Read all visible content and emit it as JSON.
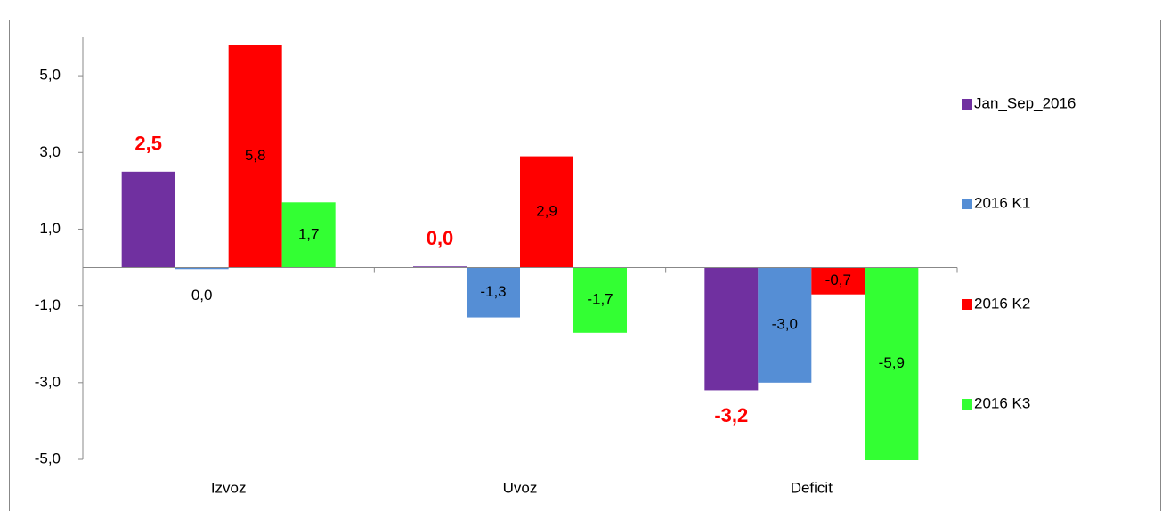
{
  "chart_data": {
    "type": "bar",
    "categories": [
      "Izvoz",
      "Uvoz",
      "Deficit"
    ],
    "series": [
      {
        "name": "Jan_Sep_2016",
        "color": "#7030a0",
        "values": [
          2.5,
          0.03,
          -3.2
        ],
        "value_labels": [
          "2,5",
          "0,0",
          "-3,2"
        ]
      },
      {
        "name": "2016 K1",
        "color": "#558ed5",
        "values": [
          -0.04,
          -1.3,
          -3.0
        ],
        "value_labels": [
          "0,0",
          "-1,3",
          "-3,0"
        ]
      },
      {
        "name": "2016 K2",
        "color": "#ff0000",
        "values": [
          5.8,
          2.9,
          -0.7
        ],
        "value_labels": [
          "5,8",
          "2,9",
          "-0,7"
        ]
      },
      {
        "name": "2016 K3",
        "color": "#33ff33",
        "values": [
          1.7,
          -1.7,
          -5.9
        ],
        "value_labels": [
          "1,7",
          "-1,7",
          "-5,9"
        ]
      }
    ],
    "ylim": [
      -5,
      6
    ],
    "yticks": [
      {
        "value": -5,
        "label": "-5,0"
      },
      {
        "value": -3,
        "label": "-3,0"
      },
      {
        "value": -1,
        "label": "-1,0"
      },
      {
        "value": 1,
        "label": "1,0"
      },
      {
        "value": 3,
        "label": "3,0"
      },
      {
        "value": 5,
        "label": "5,0"
      }
    ],
    "grid": false,
    "legend": "right"
  }
}
